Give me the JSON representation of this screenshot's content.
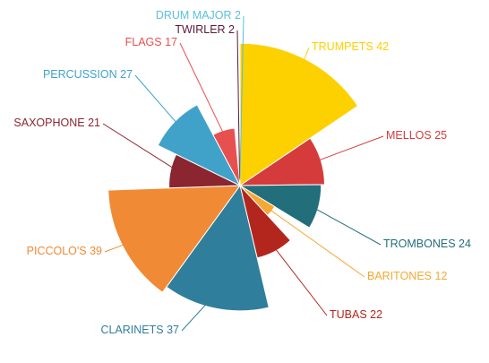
{
  "chart_data": {
    "type": "pie",
    "categories": [
      "TRUMPETS",
      "MELLOS",
      "TROMBONES",
      "BARITONES",
      "TUBAS",
      "CLARINETS",
      "PICCOLO'S",
      "SAXOPHONE",
      "PERCUSSION",
      "FLAGS",
      "TWIRLER",
      "DRUM MAJOR"
    ],
    "values": [
      42,
      25,
      24,
      12,
      22,
      37,
      39,
      21,
      27,
      17,
      2,
      2
    ],
    "colors": [
      "#fdd000",
      "#d63b3b",
      "#236e7b",
      "#f5a833",
      "#b3261e",
      "#2f7f9c",
      "#f08a35",
      "#8b2530",
      "#40a2c9",
      "#e85050",
      "#5a1a3a",
      "#5ac0d8"
    ]
  }
}
